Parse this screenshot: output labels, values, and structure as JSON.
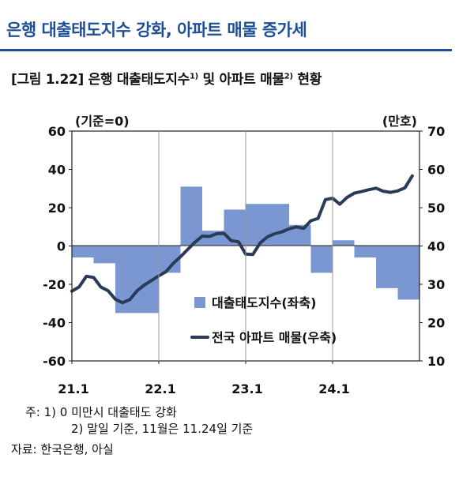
{
  "page": {
    "section_title": "은행 대출태도지수 강화, 아파트 매물 증가세",
    "figure_title": "[그림 1.22] 은행 대출태도지수",
    "figure_sup1": "1)",
    "figure_mid": " 및 아파트 매물",
    "figure_sup2": "2)",
    "figure_end": " 현황",
    "note1": "주: 1) 0 미만시 대출태도 강화",
    "note2": "2) 말일 기준, 11월은 11.24일 기준",
    "source": "자료: 한국은행, 아실"
  },
  "chart_data": {
    "type": "bar+line",
    "left_axis_unit": "(기준=0)",
    "right_axis_unit": "(만호)",
    "left_ylim": [
      -60,
      60
    ],
    "left_ticks": [
      "60",
      "40",
      "20",
      "0",
      "-20",
      "-40",
      "-60"
    ],
    "right_ylim": [
      10,
      70
    ],
    "right_ticks": [
      "70",
      "60",
      "50",
      "40",
      "30",
      "20",
      "10"
    ],
    "x_ticks": [
      "21.1",
      "22.1",
      "23.1",
      "24.1"
    ],
    "x_range": [
      0,
      16
    ],
    "legend": {
      "bar": "대출태도지수(좌축)",
      "line": "전국 아파트 매물(우축)",
      "placement": "center-right"
    },
    "bar_series": {
      "name": "대출태도지수(좌축)",
      "color": "#7b97d2",
      "quarters": [
        "21Q1",
        "21Q2",
        "21Q3",
        "21Q4",
        "22Q1",
        "22Q2",
        "22Q3",
        "22Q4",
        "23Q1",
        "23Q2",
        "23Q3",
        "23Q4",
        "24Q1",
        "24Q2",
        "24Q3",
        "24Q4"
      ],
      "values": [
        -6,
        -9,
        -35,
        -35,
        -14,
        31,
        8,
        19,
        22,
        22,
        11,
        -14,
        3,
        -6,
        -22,
        -28
      ]
    },
    "line_series": {
      "name": "전국 아파트 매물(우축)",
      "color": "#2a3b57",
      "x": [
        0.0,
        0.33,
        0.67,
        1.0,
        1.33,
        1.67,
        2.0,
        2.33,
        2.67,
        3.0,
        3.33,
        3.67,
        4.0,
        4.33,
        4.67,
        5.0,
        5.33,
        5.67,
        6.0,
        6.33,
        6.67,
        7.0,
        7.33,
        7.67,
        8.0,
        8.33,
        8.67,
        9.0,
        9.33,
        9.67,
        10.0,
        10.33,
        10.67,
        11.0,
        11.33,
        11.67,
        12.0,
        12.33,
        12.67,
        13.0,
        13.33,
        13.67,
        14.0,
        14.33,
        14.67,
        15.0,
        15.33,
        15.67
      ],
      "values": [
        28.2,
        29.3,
        32.1,
        31.8,
        29.3,
        28.3,
        26.1,
        25.2,
        26.0,
        28.3,
        29.8,
        31.0,
        32.2,
        33.3,
        35.5,
        37.2,
        39.1,
        41.0,
        42.6,
        42.5,
        43.2,
        43.3,
        41.4,
        41.1,
        37.9,
        37.8,
        40.8,
        42.4,
        43.2,
        43.7,
        44.5,
        45.0,
        44.6,
        46.6,
        47.2,
        52.1,
        52.5,
        50.9,
        52.7,
        53.8,
        54.2,
        54.7,
        55.1,
        54.3,
        54.0,
        54.4,
        55.2,
        58.3
      ]
    }
  }
}
